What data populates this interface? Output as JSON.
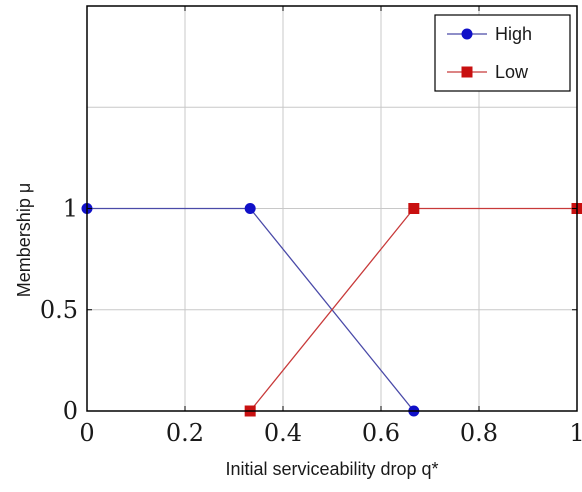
{
  "chart_data": {
    "type": "line",
    "title": "",
    "xlabel": "Initial serviceability drop q*",
    "ylabel": "Membership μ",
    "xlim": [
      0,
      1
    ],
    "ylim": [
      0,
      2
    ],
    "x_ticks": [
      "0",
      "0.2",
      "0.4",
      "0.6",
      "0.8",
      "1"
    ],
    "y_ticks": [
      "0",
      "0.5",
      "1"
    ],
    "grid": true,
    "legend_position": "top-right",
    "series": [
      {
        "name": "High",
        "color": "#1010c8",
        "line_color": "#4a4aa8",
        "marker": "circle",
        "x": [
          0,
          0.333,
          0.667
        ],
        "y": [
          1,
          1,
          0
        ]
      },
      {
        "name": "Low",
        "color": "#c81010",
        "line_color": "#c83a3a",
        "marker": "square",
        "x": [
          0.333,
          0.667,
          1
        ],
        "y": [
          0,
          1,
          1
        ]
      }
    ]
  }
}
